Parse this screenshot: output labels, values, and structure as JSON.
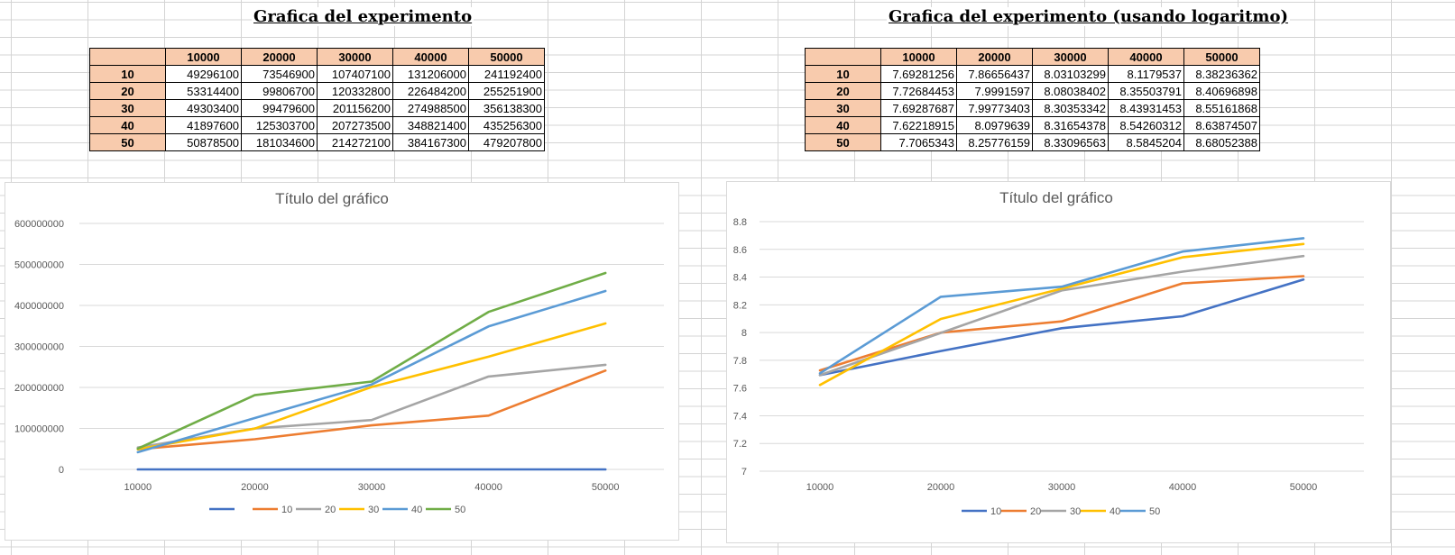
{
  "left": {
    "title": "Grafica del experimento",
    "table": {
      "columns": [
        "10000",
        "20000",
        "30000",
        "40000",
        "50000"
      ],
      "rows": [
        {
          "label": "10",
          "values": [
            "49296100",
            "73546900",
            "107407100",
            "131206000",
            "241192400"
          ]
        },
        {
          "label": "20",
          "values": [
            "53314400",
            "99806700",
            "120332800",
            "226484200",
            "255251900"
          ]
        },
        {
          "label": "30",
          "values": [
            "49303400",
            "99479600",
            "201156200",
            "274988500",
            "356138300"
          ]
        },
        {
          "label": "40",
          "values": [
            "41897600",
            "125303700",
            "207273500",
            "348821400",
            "435256300"
          ]
        },
        {
          "label": "50",
          "values": [
            "50878500",
            "181034600",
            "214272100",
            "384167300",
            "479207800"
          ]
        }
      ]
    }
  },
  "right": {
    "title": "Grafica del experimento (usando logaritmo)",
    "table": {
      "columns": [
        "10000",
        "20000",
        "30000",
        "40000",
        "50000"
      ],
      "rows": [
        {
          "label": "10",
          "values": [
            "7.69281256",
            "7.86656437",
            "8.03103299",
            "8.1179537",
            "8.38236362"
          ]
        },
        {
          "label": "20",
          "values": [
            "7.72684453",
            "7.9991597",
            "8.08038402",
            "8.35503791",
            "8.40696898"
          ]
        },
        {
          "label": "30",
          "values": [
            "7.69287687",
            "7.99773403",
            "8.30353342",
            "8.43931453",
            "8.55161868"
          ]
        },
        {
          "label": "40",
          "values": [
            "7.62218915",
            "8.0979639",
            "8.31654378",
            "8.54260312",
            "8.63874507"
          ]
        },
        {
          "label": "50",
          "values": [
            "7.7065343",
            "8.25776159",
            "8.33096563",
            "8.5845204",
            "8.68052388"
          ]
        }
      ]
    }
  },
  "chart_data": [
    {
      "type": "line",
      "title": "Título del gráfico",
      "xlabel": "",
      "ylabel": "",
      "categories": [
        "10000",
        "20000",
        "30000",
        "40000",
        "50000"
      ],
      "ylim": [
        0,
        600000000
      ],
      "yticks": [
        "0",
        "100000000",
        "200000000",
        "300000000",
        "400000000",
        "500000000",
        "600000000"
      ],
      "grid": true,
      "legend": "bottom",
      "series": [
        {
          "name": "",
          "color": "#4472c4",
          "values": [
            10000,
            20000,
            30000,
            40000,
            50000
          ]
        },
        {
          "name": "10",
          "color": "#ed7d31",
          "values": [
            49296100,
            73546900,
            107407100,
            131206000,
            241192400
          ]
        },
        {
          "name": "20",
          "color": "#a5a5a5",
          "values": [
            53314400,
            99806700,
            120332800,
            226484200,
            255251900
          ]
        },
        {
          "name": "30",
          "color": "#ffc000",
          "values": [
            49303400,
            99479600,
            201156200,
            274988500,
            356138300
          ]
        },
        {
          "name": "40",
          "color": "#5b9bd5",
          "values": [
            41897600,
            125303700,
            207273500,
            348821400,
            435256300
          ]
        },
        {
          "name": "50",
          "color": "#70ad47",
          "values": [
            50878500,
            181034600,
            214272100,
            384167300,
            479207800
          ]
        }
      ]
    },
    {
      "type": "line",
      "title": "Título del gráfico",
      "xlabel": "",
      "ylabel": "",
      "categories": [
        "10000",
        "20000",
        "30000",
        "40000",
        "50000"
      ],
      "ylim": [
        7,
        8.8
      ],
      "yticks": [
        "7",
        "7.2",
        "7.4",
        "7.6",
        "7.8",
        "8",
        "8.2",
        "8.4",
        "8.6",
        "8.8"
      ],
      "grid": true,
      "legend": "bottom",
      "series": [
        {
          "name": "10",
          "color": "#4472c4",
          "values": [
            7.69281256,
            7.86656437,
            8.03103299,
            8.1179537,
            8.38236362
          ]
        },
        {
          "name": "20",
          "color": "#ed7d31",
          "values": [
            7.72684453,
            7.9991597,
            8.08038402,
            8.35503791,
            8.40696898
          ]
        },
        {
          "name": "30",
          "color": "#a5a5a5",
          "values": [
            7.69287687,
            7.99773403,
            8.30353342,
            8.43931453,
            8.55161868
          ]
        },
        {
          "name": "40",
          "color": "#ffc000",
          "values": [
            7.62218915,
            8.0979639,
            8.31654378,
            8.54260312,
            8.63874507
          ]
        },
        {
          "name": "50",
          "color": "#5b9bd5",
          "values": [
            7.7065343,
            8.25776159,
            8.33096563,
            8.5845204,
            8.68052388
          ]
        }
      ]
    }
  ]
}
